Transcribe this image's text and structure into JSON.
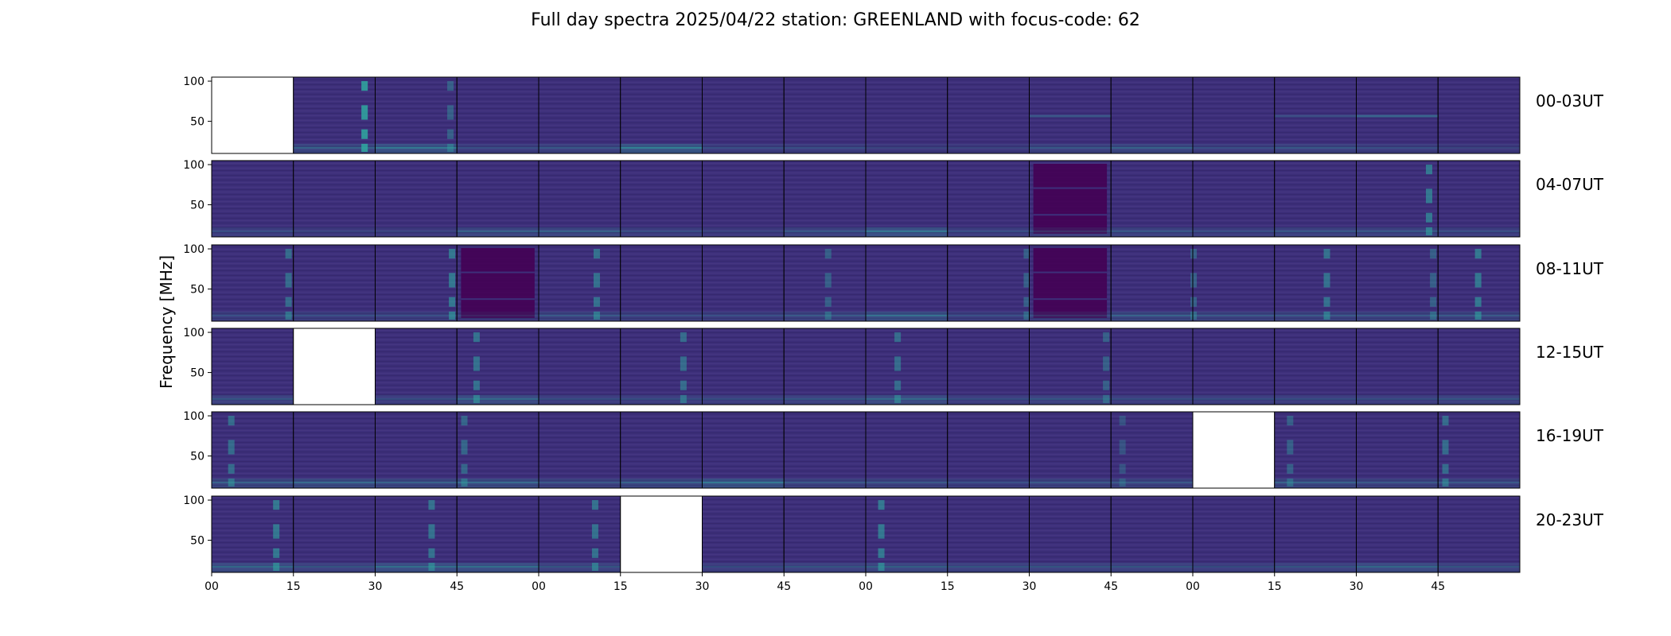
{
  "title": "Full day spectra 2025/04/22 station: GREENLAND with focus-code: 62",
  "chart_data": {
    "type": "heatmap",
    "title": "Full day spectra 2025/04/22 station: GREENLAND with focus-code: 62",
    "ylabel": "Frequency [MHz]",
    "ylim": [
      10,
      105
    ],
    "yticks": [
      50,
      100
    ],
    "xticks": [
      "00",
      "15",
      "30",
      "45",
      "00",
      "15",
      "30",
      "45",
      "00",
      "15",
      "30",
      "45",
      "00",
      "15",
      "30",
      "45"
    ],
    "colors": {
      "base": "#3d2f7a",
      "dark": "#440154",
      "bright": "#2fa8a0",
      "frame": "#000000",
      "empty": "#ffffff"
    },
    "rows": [
      {
        "label": "00-03UT",
        "panels": [
          {
            "empty": true
          },
          {
            "burst_at": 0.88,
            "burst_strength": 0.85,
            "low_band": 0.5
          },
          {
            "burst_at": 0.93,
            "burst_strength": 0.4,
            "low_band": 0.8
          },
          {
            "low_band": 0.3
          },
          {
            "low_band": 0.4
          },
          {
            "low_band": 0.9
          },
          {
            "low_band": 0.3
          },
          {
            "low_band": 0.3
          },
          {
            "low_band": 0.2
          },
          {
            "low_band": 0.2
          },
          {
            "low_band": 0.4,
            "mid_band": 0.5
          },
          {
            "low_band": 0.5
          },
          {
            "low_band": 0.3
          },
          {
            "low_band": 0.4,
            "mid_band": 0.4
          },
          {
            "low_band": 0.3,
            "mid_band": 0.7
          },
          {
            "low_band": 0.2
          }
        ]
      },
      {
        "label": "04-07UT",
        "panels": [
          {
            "low_band": 0.3
          },
          {
            "low_band": 0.2
          },
          {
            "low_band": 0.2
          },
          {
            "low_band": 0.5
          },
          {
            "low_band": 0.5
          },
          {
            "low_band": 0.3
          },
          {
            "low_band": 0.2
          },
          {
            "low_band": 0.4
          },
          {
            "low_band": 0.8
          },
          {
            "low_band": 0.3
          },
          {
            "dark_block": true,
            "low_band": 0.3
          },
          {
            "low_band": 0.4
          },
          {
            "low_band": 0.3
          },
          {
            "low_band": 0.4
          },
          {
            "burst_at": 0.9,
            "burst_strength": 0.6,
            "low_band": 0.4
          },
          {
            "low_band": 0.3
          }
        ]
      },
      {
        "label": "08-11UT",
        "panels": [
          {
            "burst_at": 0.95,
            "burst_strength": 0.5,
            "low_band": 0.3
          },
          {
            "low_band": 0.3
          },
          {
            "burst_at": 0.95,
            "burst_strength": 0.6,
            "low_band": 0.3
          },
          {
            "dark_block": true,
            "low_band": 0.2
          },
          {
            "burst_at": 0.72,
            "burst_strength": 0.55,
            "low_band": 0.4
          },
          {
            "low_band": 0.3
          },
          {
            "low_band": 0.3
          },
          {
            "burst_at": 0.55,
            "burst_strength": 0.4,
            "low_band": 0.4
          },
          {
            "low_band": 0.7
          },
          {
            "burst_at": 0.98,
            "burst_strength": 0.4,
            "low_band": 0.3
          },
          {
            "dark_block": true,
            "low_band": 0.3
          },
          {
            "low_band": 0.5
          },
          {
            "burst_at": 0.02,
            "burst_strength": 0.4,
            "low_band": 0.4
          },
          {
            "burst_at": 0.65,
            "burst_strength": 0.55,
            "low_band": 0.4
          },
          {
            "burst_at": 0.95,
            "burst_strength": 0.4,
            "low_band": 0.4
          },
          {
            "burst_at": 0.5,
            "burst_strength": 0.6,
            "low_band": 0.4
          }
        ]
      },
      {
        "label": "12-15UT",
        "panels": [
          {
            "low_band": 0.4
          },
          {
            "empty": true
          },
          {
            "low_band": 0.3
          },
          {
            "burst_at": 0.25,
            "burst_strength": 0.55,
            "low_band": 0.6
          },
          {
            "low_band": 0.3
          },
          {
            "burst_at": 0.78,
            "burst_strength": 0.5,
            "low_band": 0.3
          },
          {
            "low_band": 0.3
          },
          {
            "low_band": 0.4
          },
          {
            "burst_at": 0.4,
            "burst_strength": 0.5,
            "low_band": 0.6
          },
          {
            "low_band": 0.3
          },
          {
            "burst_at": 0.95,
            "burst_strength": 0.4,
            "low_band": 0.4
          },
          {
            "low_band": 0.3
          },
          {
            "low_band": 0.3
          },
          {
            "low_band": 0.3
          },
          {
            "low_band": 0.3
          },
          {
            "low_band": 0.4
          }
        ]
      },
      {
        "label": "16-19UT",
        "panels": [
          {
            "burst_at": 0.25,
            "burst_strength": 0.5,
            "low_band": 0.5
          },
          {
            "low_band": 0.6
          },
          {
            "low_band": 0.5
          },
          {
            "burst_at": 0.1,
            "burst_strength": 0.45,
            "low_band": 0.6
          },
          {
            "low_band": 0.4
          },
          {
            "low_band": 0.5
          },
          {
            "low_band": 0.8
          },
          {
            "low_band": 0.4
          },
          {
            "low_band": 0.4
          },
          {
            "low_band": 0.3
          },
          {
            "low_band": 0.4
          },
          {
            "burst_at": 0.15,
            "burst_strength": 0.3,
            "low_band": 0.4
          },
          {
            "empty": true
          },
          {
            "burst_at": 0.2,
            "burst_strength": 0.4,
            "low_band": 0.5
          },
          {
            "low_band": 0.4
          },
          {
            "burst_at": 0.1,
            "burst_strength": 0.5,
            "low_band": 0.4
          }
        ]
      },
      {
        "label": "20-23UT",
        "panels": [
          {
            "burst_at": 0.8,
            "burst_strength": 0.6,
            "low_band": 0.6
          },
          {
            "low_band": 0.4
          },
          {
            "burst_at": 0.7,
            "burst_strength": 0.55,
            "low_band": 0.7
          },
          {
            "low_band": 0.7
          },
          {
            "burst_at": 0.7,
            "burst_strength": 0.55,
            "low_band": 0.4
          },
          {
            "empty": true
          },
          {
            "low_band": 0.3
          },
          {
            "low_band": 0.4
          },
          {
            "burst_at": 0.2,
            "burst_strength": 0.6,
            "low_band": 0.5
          },
          {
            "low_band": 0.4
          },
          {
            "low_band": 0.4
          },
          {
            "low_band": 0.4
          },
          {
            "low_band": 0.3
          },
          {
            "low_band": 0.4
          },
          {
            "low_band": 0.6
          },
          {
            "low_band": 0.4
          }
        ]
      }
    ]
  }
}
